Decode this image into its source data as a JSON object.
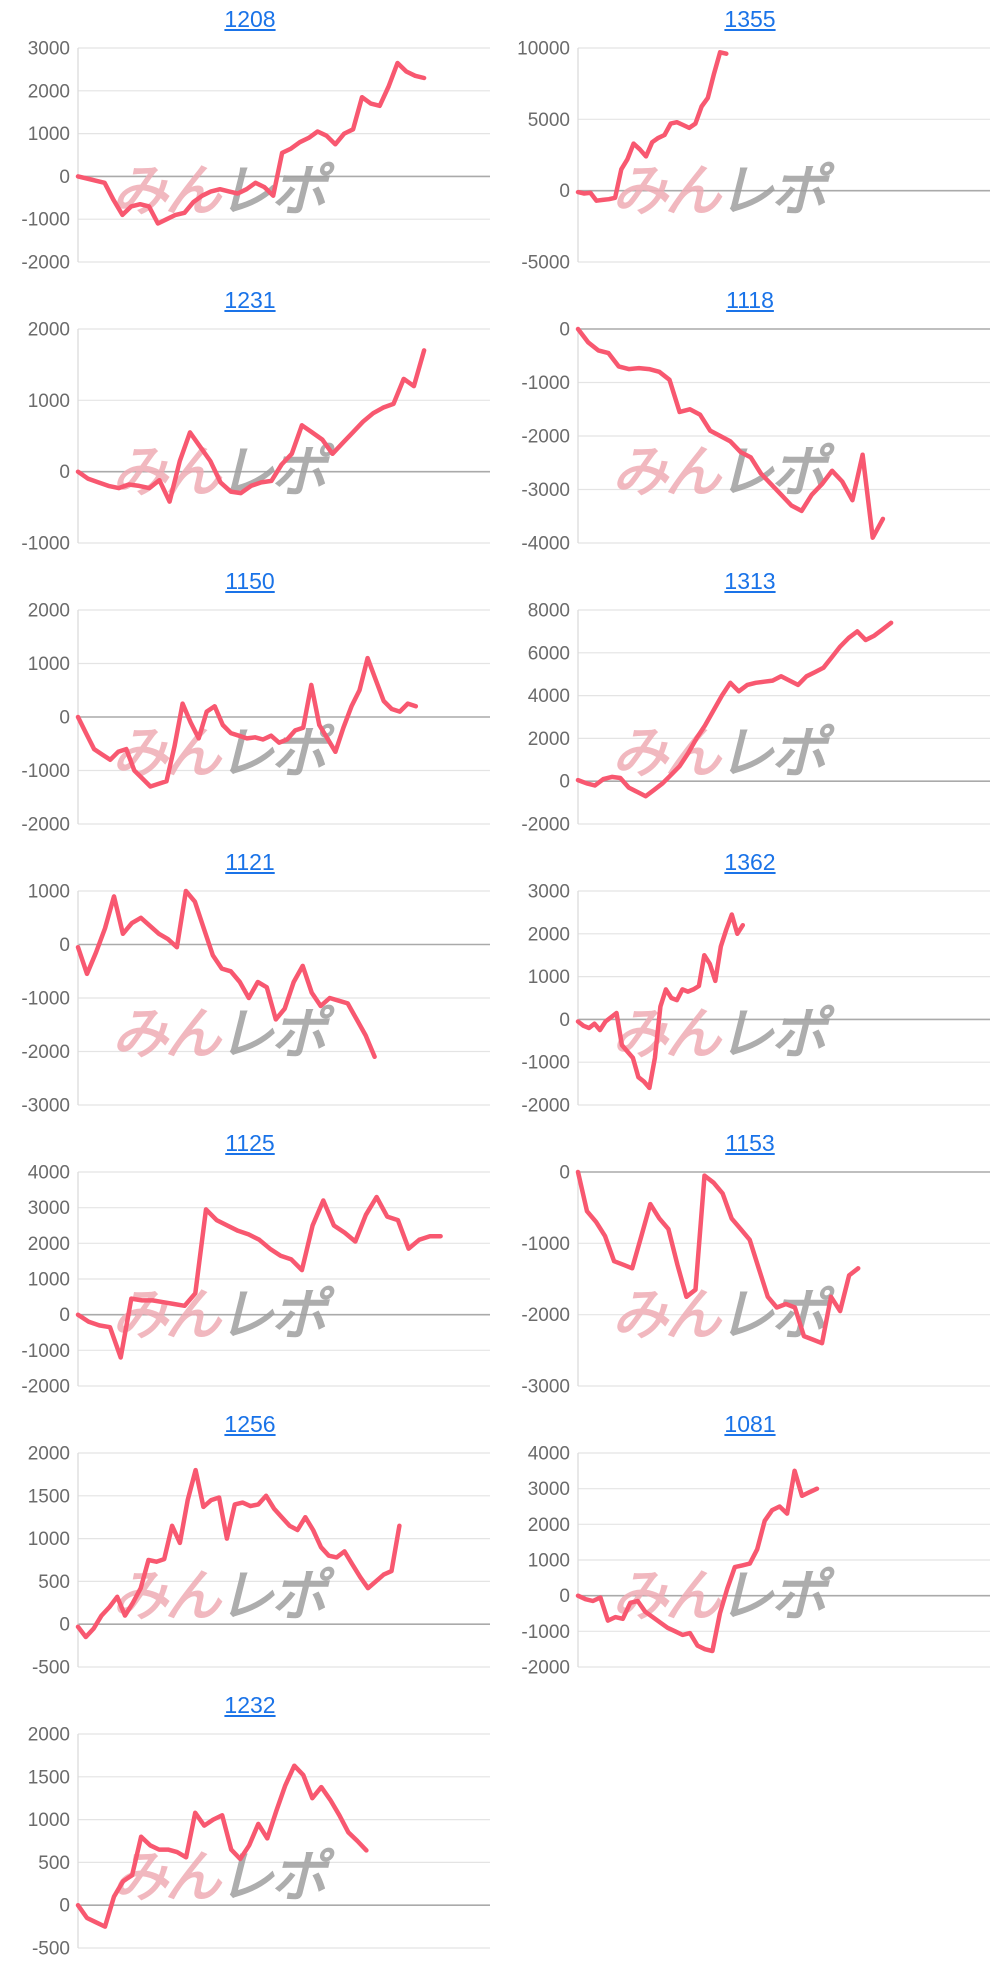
{
  "page": {
    "background_color": "#ffffff",
    "layout": "2-column grid of machine slump line charts"
  },
  "style": {
    "line_color": "#f85870",
    "title_link_color": "#1a73e8",
    "grid_color": "#e4e4e4",
    "zero_line_color": "#aaaaaa",
    "axis_line_color": "#d9d9d9",
    "tick_label_color": "#6b6b6b",
    "watermark_pink": "#efacb5",
    "watermark_gray": "#9f9f9f"
  },
  "watermark": {
    "pink_text": "みん",
    "gray_text": "レポ"
  },
  "chart_data": [
    {
      "type": "line",
      "title": "1208",
      "xlabel": "",
      "ylabel": "",
      "grid": true,
      "legend": false,
      "y_ticks": [
        3000,
        2000,
        1000,
        0,
        -1000,
        -2000
      ],
      "ylim": [
        -2000,
        3000
      ],
      "end_frac": 0.84,
      "values": [
        0,
        -50,
        -100,
        -150,
        -550,
        -900,
        -700,
        -650,
        -700,
        -1100,
        -1000,
        -900,
        -850,
        -600,
        -450,
        -350,
        -300,
        -350,
        -400,
        -300,
        -150,
        -250,
        -450,
        550,
        650,
        800,
        900,
        1050,
        950,
        750,
        1000,
        1100,
        1850,
        1700,
        1650,
        2100,
        2650,
        2450,
        2350,
        2300
      ]
    },
    {
      "type": "line",
      "title": "1355",
      "xlabel": "",
      "ylabel": "",
      "grid": true,
      "legend": false,
      "y_ticks": [
        10000,
        5000,
        0,
        -5000
      ],
      "ylim": [
        -5000,
        10000
      ],
      "end_frac": 0.36,
      "values": [
        -100,
        -200,
        -150,
        -700,
        -650,
        -600,
        -500,
        1500,
        2200,
        3300,
        2900,
        2400,
        3400,
        3700,
        3900,
        4700,
        4800,
        4600,
        4400,
        4700,
        5900,
        6500,
        8200,
        9700,
        9600
      ]
    },
    {
      "type": "line",
      "title": "1231",
      "xlabel": "",
      "ylabel": "",
      "grid": true,
      "legend": false,
      "y_ticks": [
        2000,
        1000,
        0,
        -1000
      ],
      "ylim": [
        -1000,
        2000
      ],
      "end_frac": 0.84,
      "values": [
        0,
        -100,
        -150,
        -200,
        -230,
        -180,
        -200,
        -230,
        -120,
        -420,
        150,
        550,
        350,
        150,
        -150,
        -280,
        -300,
        -200,
        -150,
        -130,
        100,
        250,
        650,
        550,
        450,
        250,
        400,
        550,
        700,
        820,
        900,
        950,
        1300,
        1200,
        1700
      ]
    },
    {
      "type": "line",
      "title": "1118",
      "xlabel": "",
      "ylabel": "",
      "grid": true,
      "legend": false,
      "y_ticks": [
        0,
        -1000,
        -2000,
        -3000,
        -4000
      ],
      "ylim": [
        -4000,
        0
      ],
      "end_frac": 0.74,
      "values": [
        0,
        -250,
        -400,
        -450,
        -700,
        -750,
        -730,
        -750,
        -800,
        -950,
        -1550,
        -1500,
        -1600,
        -1900,
        -2000,
        -2100,
        -2300,
        -2400,
        -2700,
        -2900,
        -3100,
        -3300,
        -3400,
        -3100,
        -2900,
        -2650,
        -2850,
        -3200,
        -2350,
        -3900,
        -3550
      ]
    },
    {
      "type": "line",
      "title": "1150",
      "xlabel": "",
      "ylabel": "",
      "grid": true,
      "legend": false,
      "y_ticks": [
        2000,
        1000,
        0,
        -1000,
        -2000
      ],
      "ylim": [
        -2000,
        2000
      ],
      "end_frac": 0.82,
      "values": [
        0,
        -300,
        -600,
        -700,
        -800,
        -650,
        -600,
        -1000,
        -1150,
        -1300,
        -1250,
        -1200,
        -550,
        250,
        -100,
        -400,
        100,
        200,
        -150,
        -300,
        -350,
        -400,
        -380,
        -420,
        -350,
        -480,
        -420,
        -250,
        -200,
        600,
        -150,
        -400,
        -650,
        -200,
        200,
        500,
        1100,
        700,
        300,
        150,
        100,
        250,
        200
      ]
    },
    {
      "type": "line",
      "title": "1313",
      "xlabel": "",
      "ylabel": "",
      "grid": true,
      "legend": false,
      "y_ticks": [
        8000,
        6000,
        4000,
        2000,
        0,
        -2000
      ],
      "ylim": [
        -2000,
        8000
      ],
      "end_frac": 0.76,
      "values": [
        50,
        -100,
        -200,
        100,
        200,
        150,
        -300,
        -500,
        -700,
        -400,
        -100,
        300,
        700,
        1300,
        2000,
        2600,
        3300,
        4000,
        4600,
        4200,
        4500,
        4600,
        4650,
        4700,
        4900,
        4700,
        4500,
        4900,
        5100,
        5300,
        5800,
        6300,
        6700,
        7000,
        6600,
        6800,
        7100,
        7400
      ]
    },
    {
      "type": "line",
      "title": "1121",
      "xlabel": "",
      "ylabel": "",
      "grid": true,
      "legend": false,
      "y_ticks": [
        1000,
        0,
        -1000,
        -2000,
        -3000
      ],
      "ylim": [
        -3000,
        1000
      ],
      "end_frac": 0.72,
      "values": [
        -50,
        -550,
        -150,
        300,
        900,
        200,
        400,
        500,
        350,
        200,
        100,
        -50,
        1000,
        800,
        300,
        -200,
        -450,
        -500,
        -700,
        -1000,
        -700,
        -800,
        -1400,
        -1200,
        -700,
        -400,
        -900,
        -1150,
        -1000,
        -1050,
        -1100,
        -1400,
        -1700,
        -2100
      ]
    },
    {
      "type": "line",
      "title": "1362",
      "xlabel": "",
      "ylabel": "",
      "grid": true,
      "legend": false,
      "y_ticks": [
        3000,
        2000,
        1000,
        0,
        -1000,
        -2000
      ],
      "ylim": [
        -2000,
        3000
      ],
      "end_frac": 0.4,
      "values": [
        -50,
        -150,
        -200,
        -100,
        -250,
        -50,
        50,
        150,
        -600,
        -750,
        -900,
        -1350,
        -1450,
        -1600,
        -900,
        300,
        700,
        500,
        450,
        700,
        650,
        700,
        780,
        1500,
        1300,
        900,
        1700,
        2100,
        2450,
        2000,
        2200
      ]
    },
    {
      "type": "line",
      "title": "1125",
      "xlabel": "",
      "ylabel": "",
      "grid": true,
      "legend": false,
      "y_ticks": [
        4000,
        3000,
        2000,
        1000,
        0,
        -1000,
        -2000
      ],
      "ylim": [
        -2000,
        4000
      ],
      "end_frac": 0.88,
      "values": [
        0,
        -200,
        -300,
        -350,
        -1200,
        450,
        400,
        400,
        350,
        300,
        250,
        600,
        2950,
        2650,
        2500,
        2350,
        2250,
        2100,
        1850,
        1650,
        1550,
        1250,
        2500,
        3200,
        2500,
        2300,
        2050,
        2800,
        3300,
        2750,
        2650,
        1850,
        2100,
        2200,
        2200
      ]
    },
    {
      "type": "line",
      "title": "1153",
      "xlabel": "",
      "ylabel": "",
      "grid": true,
      "legend": false,
      "y_ticks": [
        0,
        -1000,
        -2000,
        -3000
      ],
      "ylim": [
        -3000,
        0
      ],
      "end_frac": 0.68,
      "values": [
        0,
        -550,
        -700,
        -900,
        -1250,
        -1300,
        -1350,
        -900,
        -450,
        -650,
        -800,
        -1300,
        -1750,
        -1650,
        -50,
        -150,
        -300,
        -650,
        -800,
        -950,
        -1350,
        -1750,
        -1900,
        -1850,
        -1900,
        -2300,
        -2350,
        -2400,
        -1750,
        -1950,
        -1450,
        -1350
      ]
    },
    {
      "type": "line",
      "title": "1256",
      "xlabel": "",
      "ylabel": "",
      "grid": true,
      "legend": false,
      "y_ticks": [
        2000,
        1500,
        1000,
        500,
        0,
        -500
      ],
      "ylim": [
        -500,
        2000
      ],
      "end_frac": 0.78,
      "values": [
        -30,
        -150,
        -50,
        100,
        200,
        320,
        100,
        250,
        420,
        750,
        730,
        760,
        1150,
        950,
        1450,
        1800,
        1370,
        1450,
        1480,
        1000,
        1400,
        1420,
        1380,
        1400,
        1500,
        1350,
        1250,
        1150,
        1100,
        1250,
        1100,
        900,
        800,
        780,
        850,
        700,
        550,
        420,
        500,
        580,
        620,
        1150
      ]
    },
    {
      "type": "line",
      "title": "1081",
      "xlabel": "",
      "ylabel": "",
      "grid": true,
      "legend": false,
      "y_ticks": [
        4000,
        3000,
        2000,
        1000,
        0,
        -1000,
        -2000
      ],
      "ylim": [
        -2000,
        4000
      ],
      "end_frac": 0.58,
      "values": [
        0,
        -100,
        -150,
        -50,
        -700,
        -600,
        -650,
        -200,
        -150,
        -450,
        -600,
        -750,
        -900,
        -1000,
        -1100,
        -1050,
        -1400,
        -1500,
        -1550,
        -500,
        200,
        800,
        850,
        900,
        1300,
        2100,
        2400,
        2500,
        2300,
        3500,
        2800,
        2900,
        3000
      ]
    },
    {
      "type": "line",
      "title": "1232",
      "xlabel": "",
      "ylabel": "",
      "grid": true,
      "legend": false,
      "y_ticks": [
        2000,
        1500,
        1000,
        500,
        0,
        -500
      ],
      "ylim": [
        -500,
        2000
      ],
      "end_frac": 0.7,
      "values": [
        0,
        -150,
        -200,
        -250,
        100,
        280,
        350,
        800,
        700,
        650,
        650,
        620,
        560,
        1080,
        930,
        1000,
        1050,
        650,
        540,
        700,
        950,
        780,
        1100,
        1400,
        1630,
        1520,
        1250,
        1380,
        1230,
        1050,
        850,
        750,
        640
      ]
    }
  ]
}
